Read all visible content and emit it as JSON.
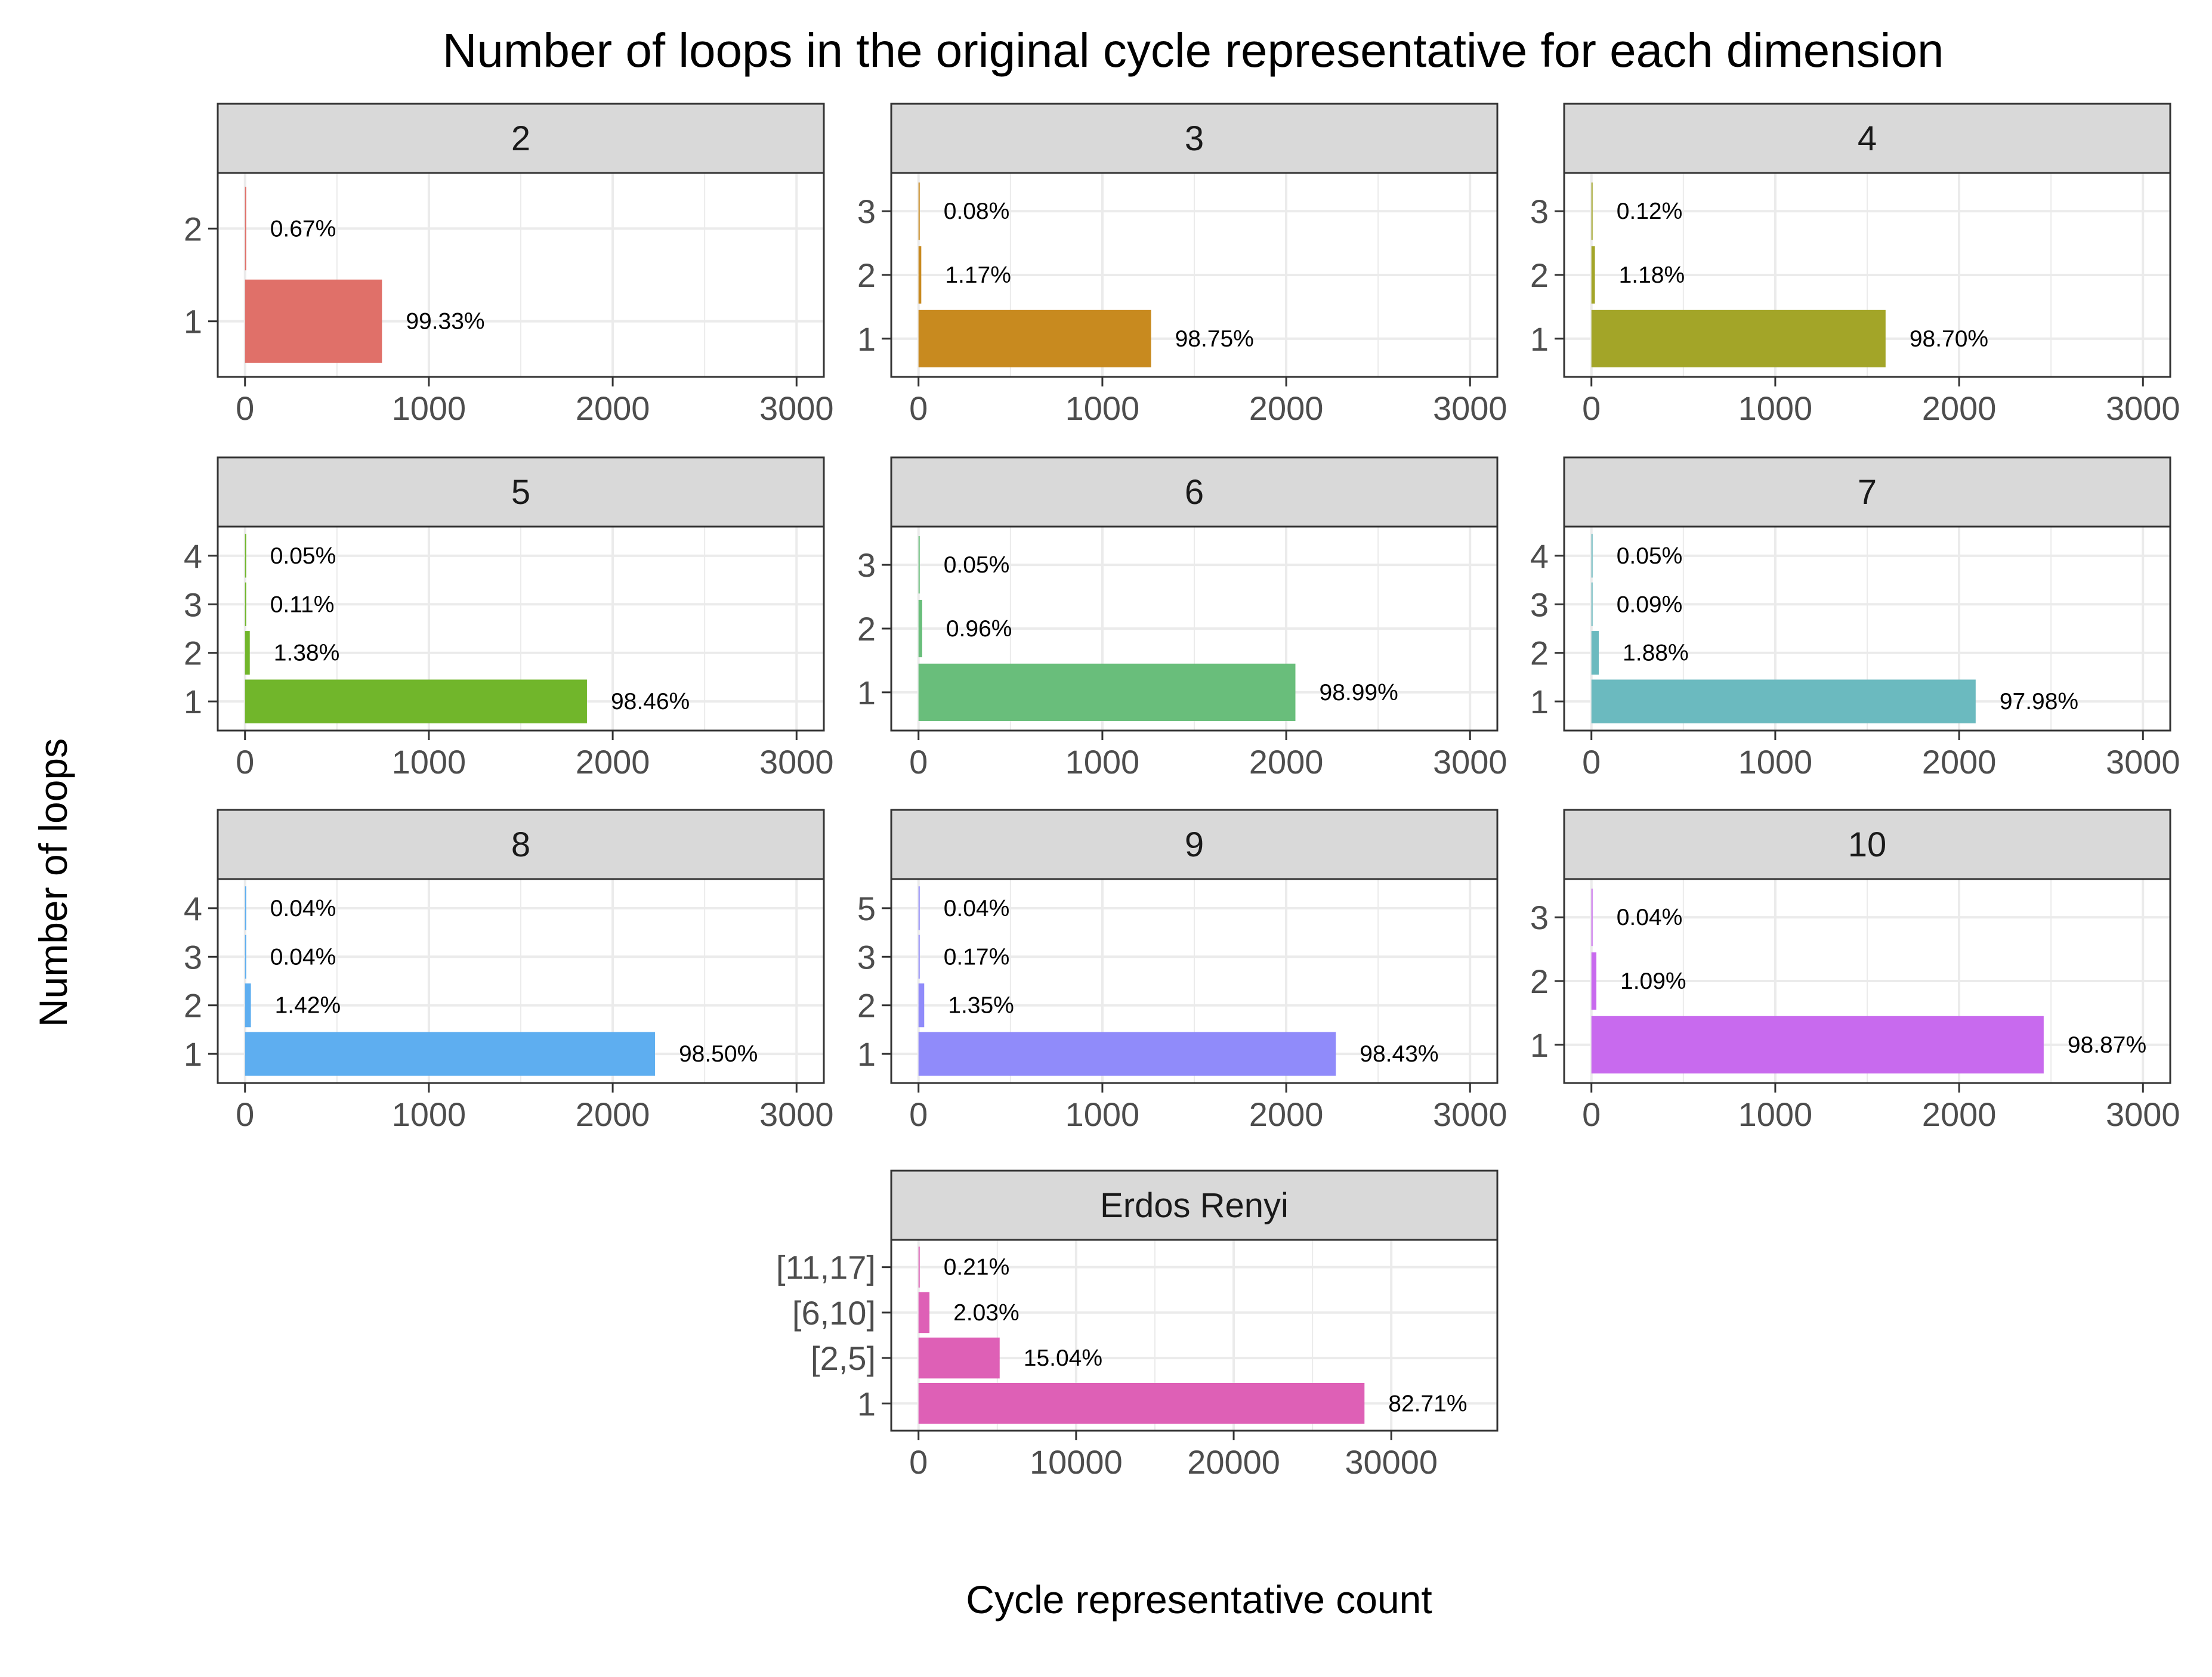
{
  "figure": {
    "title": "Number of loops in the original cycle representative for each dimension",
    "xlabel": "Cycle representative count",
    "ylabel": "Number of loops"
  },
  "colors": {
    "strip_bg": "#d9d9d9",
    "panel_border": "#333333",
    "grid": "#ebebeb",
    "tick_text": "#4d4d4d"
  },
  "chart_data": [
    {
      "type": "bar",
      "orientation": "horizontal",
      "panel": "2",
      "color": "#E07069",
      "categories": [
        "1",
        "2"
      ],
      "values": [
        745,
        5
      ],
      "labels": [
        "99.33%",
        "0.67%"
      ],
      "xlim": [
        0,
        3000
      ],
      "xticks": [
        0,
        1000,
        2000,
        3000
      ]
    },
    {
      "type": "bar",
      "orientation": "horizontal",
      "panel": "3",
      "color": "#C88A1F",
      "categories": [
        "1",
        "2",
        "3"
      ],
      "values": [
        1265,
        15,
        1
      ],
      "labels": [
        "98.75%",
        "1.17%",
        "0.08%"
      ],
      "xlim": [
        0,
        3000
      ],
      "xticks": [
        0,
        1000,
        2000,
        3000
      ]
    },
    {
      "type": "bar",
      "orientation": "horizontal",
      "panel": "4",
      "color": "#A3A528",
      "categories": [
        "1",
        "2",
        "3"
      ],
      "values": [
        1600,
        19,
        2
      ],
      "labels": [
        "98.70%",
        "1.18%",
        "0.12%"
      ],
      "xlim": [
        0,
        3000
      ],
      "xticks": [
        0,
        1000,
        2000,
        3000
      ]
    },
    {
      "type": "bar",
      "orientation": "horizontal",
      "panel": "5",
      "color": "#71B62B",
      "categories": [
        "1",
        "2",
        "3",
        "4"
      ],
      "values": [
        1860,
        26,
        2,
        1
      ],
      "labels": [
        "98.46%",
        "1.38%",
        "0.11%",
        "0.05%"
      ],
      "xlim": [
        0,
        3000
      ],
      "xticks": [
        0,
        1000,
        2000,
        3000
      ]
    },
    {
      "type": "bar",
      "orientation": "horizontal",
      "panel": "6",
      "color": "#69BE7B",
      "categories": [
        "1",
        "2",
        "3"
      ],
      "values": [
        2050,
        20,
        1
      ],
      "labels": [
        "98.99%",
        "0.96%",
        "0.05%"
      ],
      "xlim": [
        0,
        3000
      ],
      "xticks": [
        0,
        1000,
        2000,
        3000
      ]
    },
    {
      "type": "bar",
      "orientation": "horizontal",
      "panel": "7",
      "color": "#6BBABF",
      "categories": [
        "1",
        "2",
        "3",
        "4"
      ],
      "values": [
        2090,
        40,
        2,
        1
      ],
      "labels": [
        "97.98%",
        "1.88%",
        "0.09%",
        "0.05%"
      ],
      "xlim": [
        0,
        3000
      ],
      "xticks": [
        0,
        1000,
        2000,
        3000
      ]
    },
    {
      "type": "bar",
      "orientation": "horizontal",
      "panel": "8",
      "color": "#5EAEF0",
      "categories": [
        "1",
        "2",
        "3",
        "4"
      ],
      "values": [
        2230,
        32,
        1,
        1
      ],
      "labels": [
        "98.50%",
        "1.42%",
        "0.04%",
        "0.04%"
      ],
      "xlim": [
        0,
        3000
      ],
      "xticks": [
        0,
        1000,
        2000,
        3000
      ]
    },
    {
      "type": "bar",
      "orientation": "horizontal",
      "panel": "9",
      "color": "#908BFA",
      "categories": [
        "1",
        "2",
        "3",
        "5"
      ],
      "values": [
        2270,
        31,
        4,
        1
      ],
      "labels": [
        "98.43%",
        "1.35%",
        "0.17%",
        "0.04%"
      ],
      "xlim": [
        0,
        3000
      ],
      "xticks": [
        0,
        1000,
        2000,
        3000
      ]
    },
    {
      "type": "bar",
      "orientation": "horizontal",
      "panel": "10",
      "color": "#C86AEE",
      "categories": [
        "1",
        "2",
        "3"
      ],
      "values": [
        2460,
        27,
        1
      ],
      "labels": [
        "98.87%",
        "1.09%",
        "0.04%"
      ],
      "xlim": [
        0,
        3000
      ],
      "xticks": [
        0,
        1000,
        2000,
        3000
      ]
    },
    {
      "type": "bar",
      "orientation": "horizontal",
      "panel": "Erdos Renyi",
      "color": "#DE60B6",
      "categories": [
        "1",
        "[2,5]",
        "[6,10]",
        "[11,17]"
      ],
      "values": [
        28300,
        5150,
        695,
        72
      ],
      "labels": [
        "82.71%",
        "15.04%",
        "2.03%",
        "0.21%"
      ],
      "xlim": [
        0,
        35000
      ],
      "xticks": [
        0,
        10000,
        20000,
        30000
      ]
    }
  ]
}
